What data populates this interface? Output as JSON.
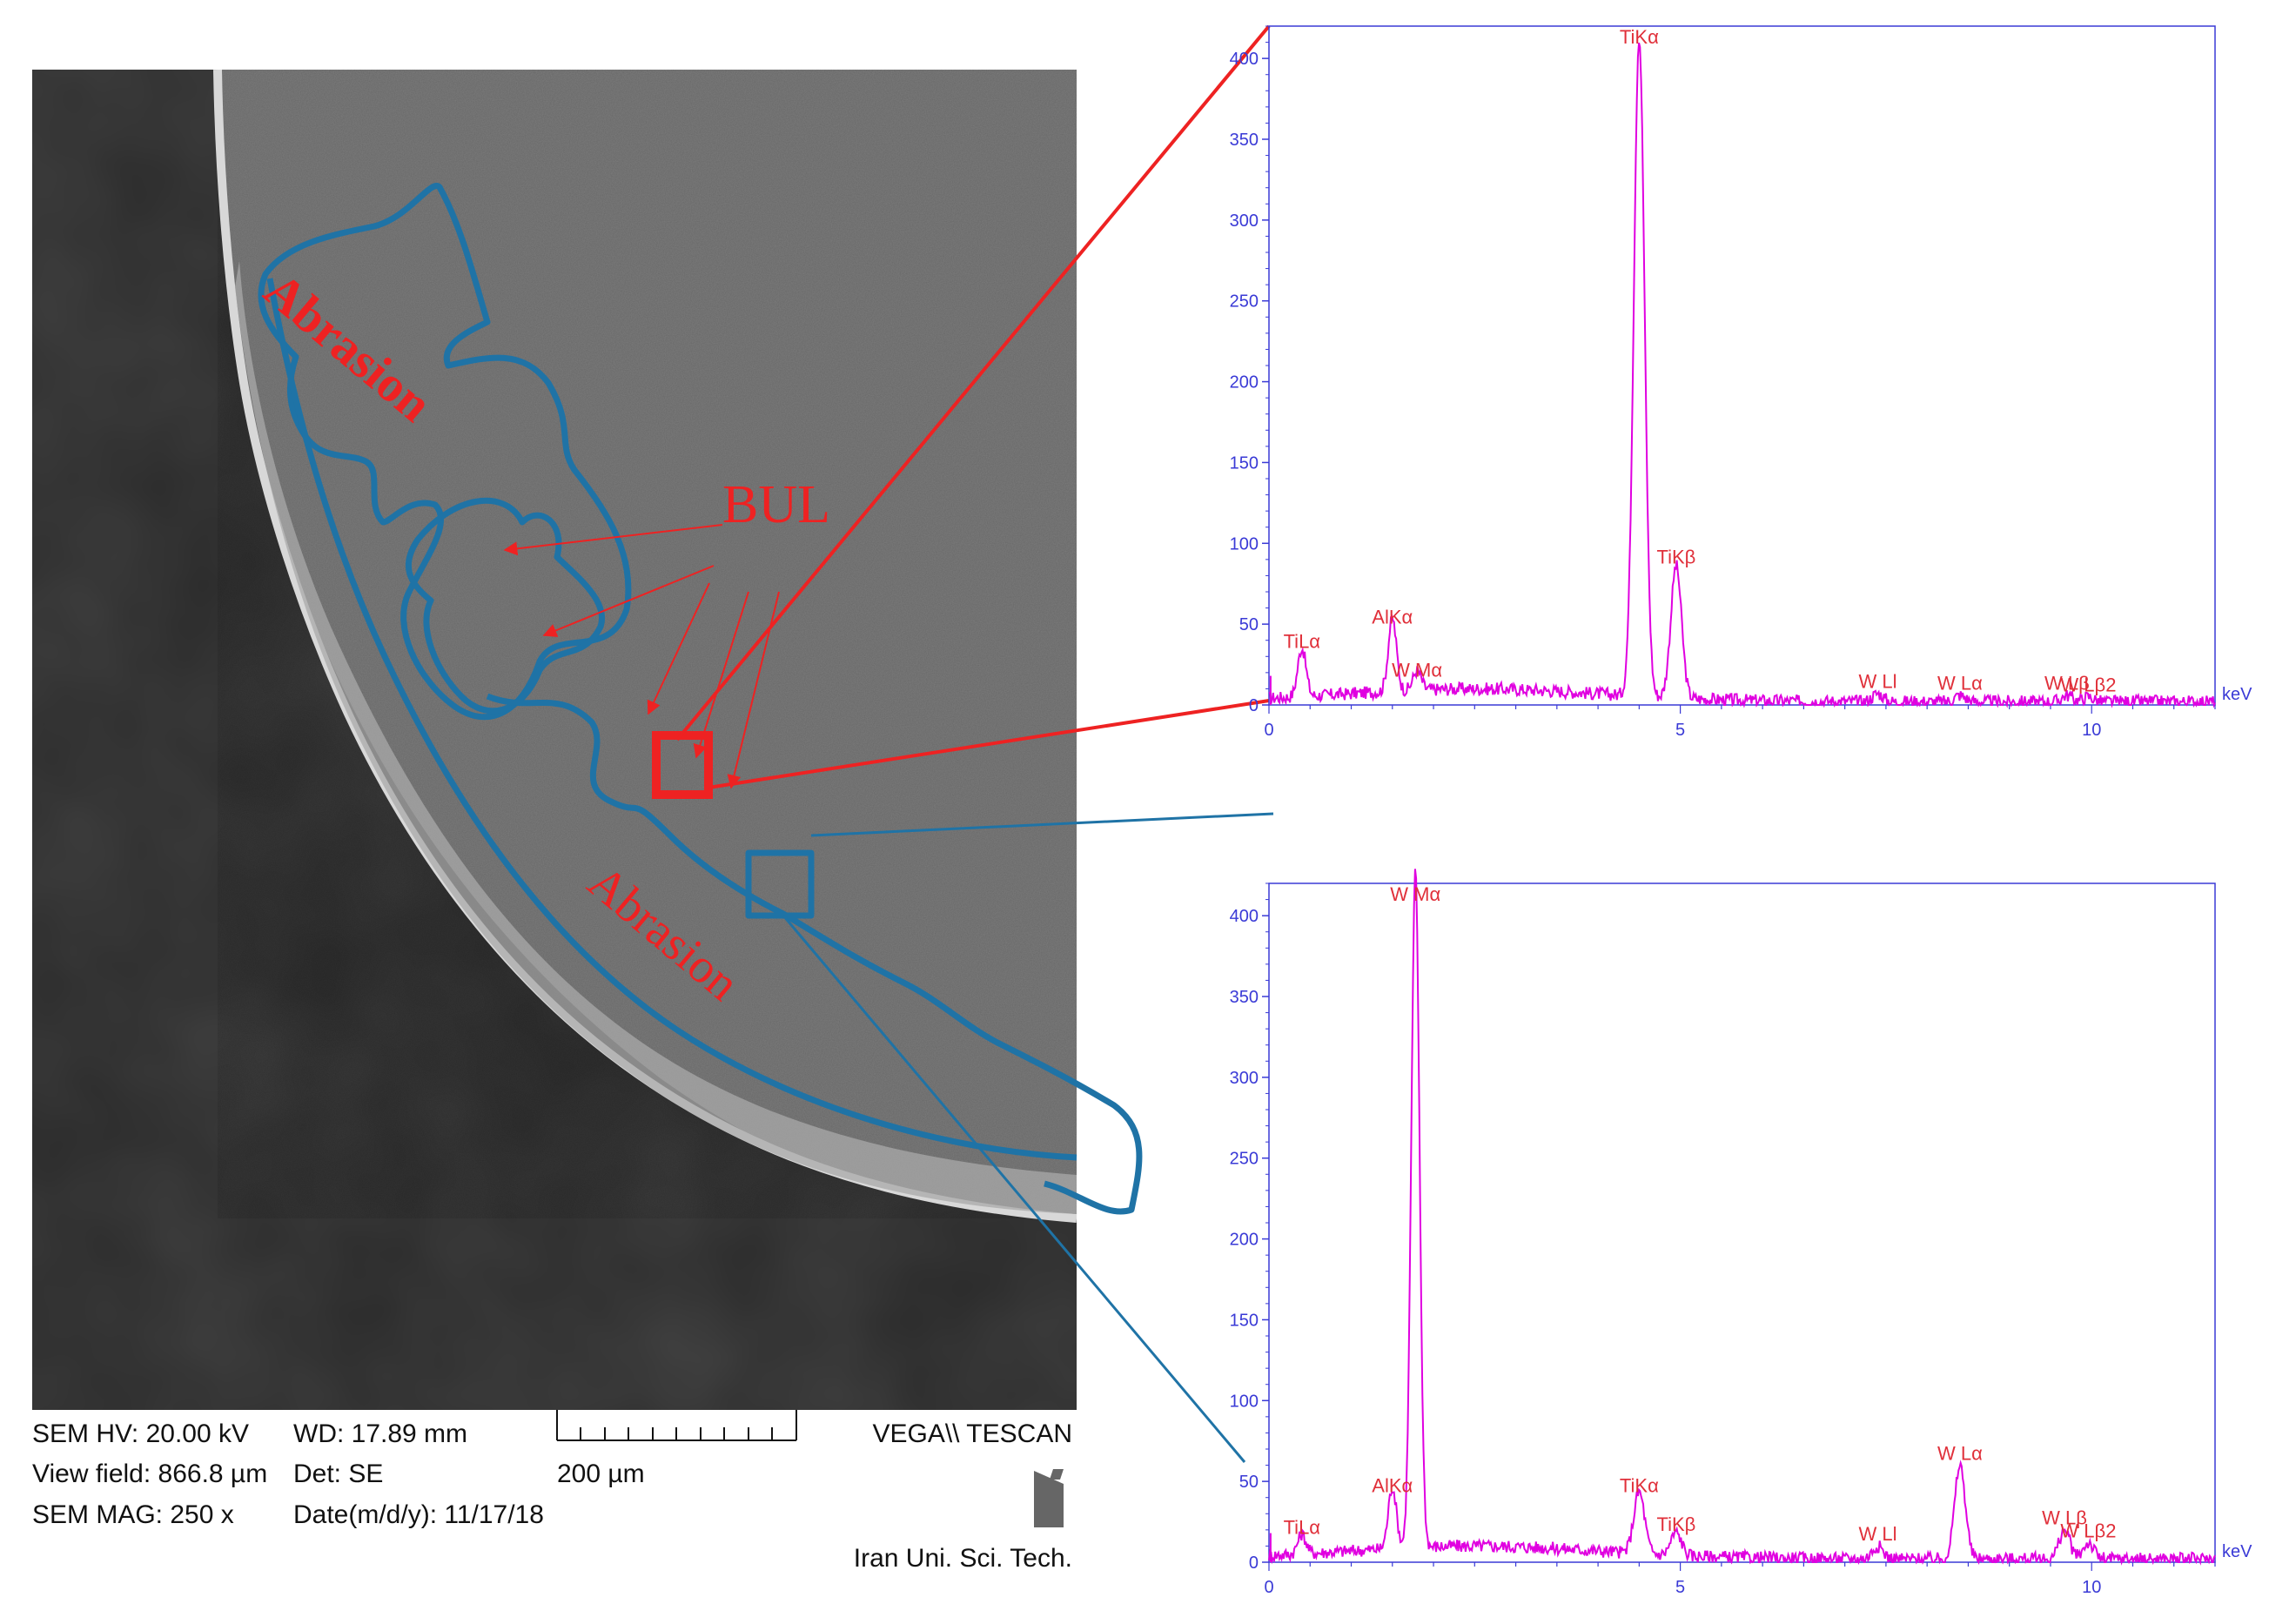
{
  "colors": {
    "annotation_red": "#ee2222",
    "region_blue": "#1f73a6",
    "spectrum_magenta": "#e000e0",
    "axis_blue": "#3a3ad6",
    "peak_label_red": "#e0303a"
  },
  "micrograph": {
    "labels": {
      "abrasion_top": "Abrasion",
      "abrasion_bottom": "Abrasion",
      "bul": "BUL"
    },
    "info": {
      "hv": "SEM HV: 20.00 kV",
      "view_field": "View field: 866.8 µm",
      "mag": "SEM MAG: 250 x",
      "wd": "WD: 17.89 mm",
      "det": "Det: SE",
      "date": "Date(m/d/y): 11/17/18",
      "scale_bar": "200 µm",
      "instrument": "VEGA\\\\ TESCAN",
      "institution": "Iran Uni. Sci. Tech."
    },
    "logo_icon": "tescan-logo-icon"
  },
  "chart_data": [
    {
      "type": "line",
      "x_unit": "keV",
      "xlim": [
        0,
        11.5
      ],
      "ylim": [
        0,
        420
      ],
      "x_ticks": [
        0,
        5,
        10
      ],
      "y_ticks": [
        0,
        50,
        100,
        150,
        200,
        250,
        300,
        350,
        400
      ],
      "peaks": [
        {
          "label": "TiLα",
          "x": 0.4,
          "y": 30
        },
        {
          "label": "AlKα",
          "x": 1.5,
          "y": 45
        },
        {
          "label": "W Mα",
          "x": 1.8,
          "y": 12
        },
        {
          "label": "TiKα",
          "x": 4.5,
          "y": 408
        },
        {
          "label": "TiKβ",
          "x": 4.95,
          "y": 82
        },
        {
          "label": "W Ll",
          "x": 7.4,
          "y": 5
        },
        {
          "label": "W Lα",
          "x": 8.4,
          "y": 4
        },
        {
          "label": "W Lβ",
          "x": 9.7,
          "y": 4
        },
        {
          "label": "W Lβ2",
          "x": 9.96,
          "y": 3
        }
      ]
    },
    {
      "type": "line",
      "x_unit": "keV",
      "xlim": [
        0,
        11.5
      ],
      "ylim": [
        0,
        420
      ],
      "x_ticks": [
        0,
        5,
        10
      ],
      "y_ticks": [
        0,
        50,
        100,
        150,
        200,
        250,
        300,
        350,
        400
      ],
      "peaks": [
        {
          "label": "TiLα",
          "x": 0.4,
          "y": 12
        },
        {
          "label": "AlKα",
          "x": 1.5,
          "y": 38
        },
        {
          "label": "W Mα",
          "x": 1.78,
          "y": 418
        },
        {
          "label": "TiKα",
          "x": 4.5,
          "y": 38
        },
        {
          "label": "TiKβ",
          "x": 4.95,
          "y": 14
        },
        {
          "label": "W Ll",
          "x": 7.4,
          "y": 8
        },
        {
          "label": "W Lα",
          "x": 8.4,
          "y": 58
        },
        {
          "label": "W Lβ",
          "x": 9.67,
          "y": 18
        },
        {
          "label": "W Lβ2",
          "x": 9.96,
          "y": 10
        }
      ]
    }
  ]
}
